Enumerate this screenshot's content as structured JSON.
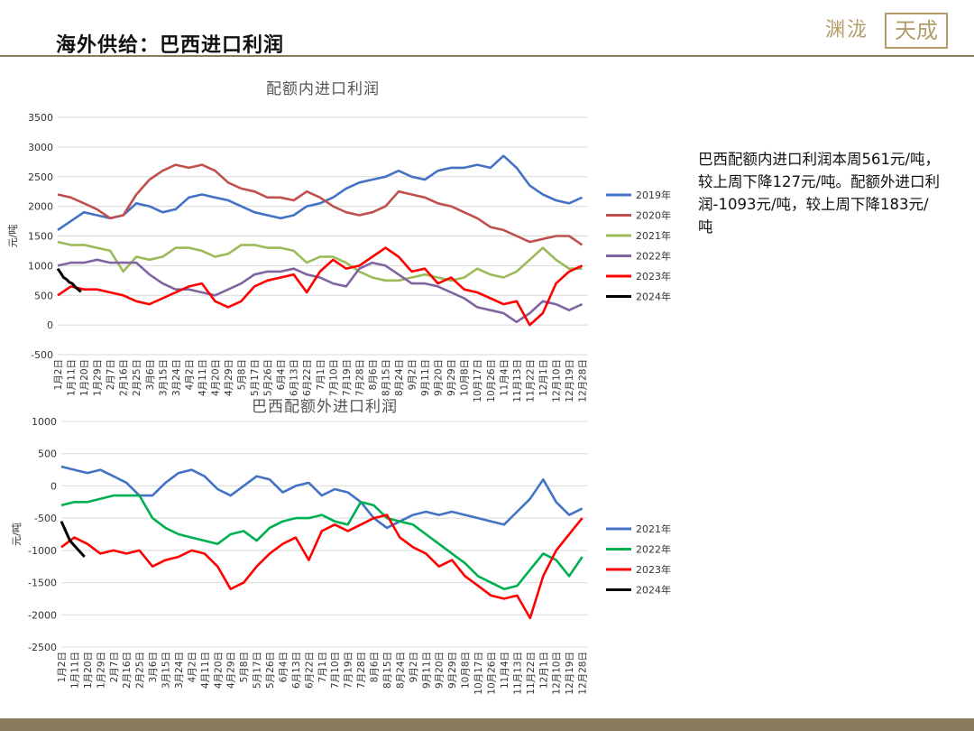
{
  "page": {
    "title": "海外供给：巴西进口利润",
    "logo_left": "渊泷",
    "logo_right": "天成"
  },
  "note": {
    "text": "巴西配额内进口利润本周561元/吨，较上周下降127元/吨。配额外进口利润-1093元/吨，较上周下降183元/吨"
  },
  "x_tick_labels": [
    "1月2日",
    "1月11日",
    "1月20日",
    "1月29日",
    "2月7日",
    "2月16日",
    "2月25日",
    "3月6日",
    "3月15日",
    "3月24日",
    "4月2日",
    "4月11日",
    "4月20日",
    "4月29日",
    "5月8日",
    "5月17日",
    "5月26日",
    "6月4日",
    "6月13日",
    "6月22日",
    "7月1日",
    "7月10日",
    "7月19日",
    "7月28日",
    "8月6日",
    "8月15日",
    "8月24日",
    "9月2日",
    "9月11日",
    "9月20日",
    "9月29日",
    "10月8日",
    "10月17日",
    "10月26日",
    "11月4日",
    "11月13日",
    "11月22日",
    "12月1日",
    "12月10日",
    "12月19日",
    "12月28日"
  ],
  "colors": {
    "2019": "#4472c4",
    "2020": "#c0504d",
    "2021": "#9bbb59",
    "2022": "#8064a2",
    "2023": "#ff0000",
    "2024": "#000000",
    "2022b": "#00b050"
  },
  "chart_data": [
    {
      "type": "line",
      "title": "配额内进口利润",
      "ylabel": "元/吨",
      "ylim": [
        -500,
        3500
      ],
      "yticks": [
        -500,
        0,
        500,
        1000,
        1500,
        2000,
        2500,
        3000,
        3500
      ],
      "x_unit": "day-of-year index (0=1月2日, 9-day tick spacing)",
      "series": [
        {
          "name": "2019年",
          "color": "#4472c4",
          "x": [
            0,
            9,
            18,
            27,
            36,
            45,
            54,
            63,
            72,
            81,
            90,
            99,
            108,
            117,
            126,
            135,
            144,
            153,
            162,
            171,
            180,
            189,
            198,
            207,
            216,
            225,
            234,
            243,
            252,
            261,
            270,
            279,
            288,
            297,
            306,
            315,
            324,
            333,
            342,
            351,
            360
          ],
          "values": [
            1600,
            1750,
            1900,
            1850,
            1800,
            1850,
            2050,
            2000,
            1900,
            1950,
            2150,
            2200,
            2150,
            2100,
            2000,
            1900,
            1850,
            1800,
            1850,
            2000,
            2050,
            2150,
            2300,
            2400,
            2450,
            2500,
            2600,
            2500,
            2450,
            2600,
            2650,
            2650,
            2700,
            2650,
            2850,
            2650,
            2350,
            2200,
            2100,
            2050,
            2150
          ]
        },
        {
          "name": "2020年",
          "color": "#c0504d",
          "x": [
            0,
            9,
            18,
            27,
            36,
            45,
            54,
            63,
            72,
            81,
            90,
            99,
            108,
            117,
            126,
            135,
            144,
            153,
            162,
            171,
            180,
            189,
            198,
            207,
            216,
            225,
            234,
            243,
            252,
            261,
            270,
            279,
            288,
            297,
            306,
            315,
            324,
            333,
            342,
            351,
            360
          ],
          "values": [
            2200,
            2150,
            2050,
            1950,
            1800,
            1850,
            2200,
            2450,
            2600,
            2700,
            2650,
            2700,
            2600,
            2400,
            2300,
            2250,
            2150,
            2150,
            2100,
            2250,
            2150,
            2000,
            1900,
            1850,
            1900,
            2000,
            2250,
            2200,
            2150,
            2050,
            2000,
            1900,
            1800,
            1650,
            1600,
            1500,
            1400,
            1450,
            1500,
            1500,
            1350
          ]
        },
        {
          "name": "2021年",
          "color": "#9bbb59",
          "x": [
            0,
            9,
            18,
            27,
            36,
            45,
            54,
            63,
            72,
            81,
            90,
            99,
            108,
            117,
            126,
            135,
            144,
            153,
            162,
            171,
            180,
            189,
            198,
            207,
            216,
            225,
            234,
            243,
            252,
            261,
            270,
            279,
            288,
            297,
            306,
            315,
            324,
            333,
            342,
            351,
            360
          ],
          "values": [
            1400,
            1350,
            1350,
            1300,
            1250,
            900,
            1150,
            1100,
            1150,
            1300,
            1300,
            1250,
            1150,
            1200,
            1350,
            1350,
            1300,
            1300,
            1250,
            1050,
            1150,
            1150,
            1050,
            900,
            800,
            750,
            750,
            800,
            850,
            800,
            750,
            800,
            950,
            850,
            800,
            900,
            1100,
            1300,
            1100,
            950,
            950
          ]
        },
        {
          "name": "2022年",
          "color": "#8064a2",
          "x": [
            0,
            9,
            18,
            27,
            36,
            45,
            54,
            63,
            72,
            81,
            90,
            99,
            108,
            117,
            126,
            135,
            144,
            153,
            162,
            171,
            180,
            189,
            198,
            207,
            216,
            225,
            234,
            243,
            252,
            261,
            270,
            279,
            288,
            297,
            306,
            315,
            324,
            333,
            342,
            351,
            360
          ],
          "values": [
            1000,
            1050,
            1050,
            1100,
            1050,
            1050,
            1050,
            850,
            700,
            600,
            600,
            550,
            500,
            600,
            700,
            850,
            900,
            900,
            950,
            850,
            800,
            700,
            650,
            950,
            1050,
            1000,
            850,
            700,
            700,
            650,
            550,
            450,
            300,
            250,
            200,
            50,
            200,
            400,
            350,
            250,
            350
          ]
        },
        {
          "name": "2023年",
          "color": "#ff0000",
          "x": [
            0,
            9,
            18,
            27,
            36,
            45,
            54,
            63,
            72,
            81,
            90,
            99,
            108,
            117,
            126,
            135,
            144,
            153,
            162,
            171,
            180,
            189,
            198,
            207,
            216,
            225,
            234,
            243,
            252,
            261,
            270,
            279,
            288,
            297,
            306,
            315,
            324,
            333,
            342,
            351,
            360
          ],
          "values": [
            500,
            650,
            600,
            600,
            550,
            500,
            400,
            350,
            450,
            550,
            650,
            700,
            400,
            300,
            400,
            650,
            750,
            800,
            850,
            550,
            900,
            1100,
            950,
            1000,
            1150,
            1300,
            1150,
            900,
            950,
            700,
            800,
            600,
            550,
            450,
            350,
            400,
            0,
            200,
            700,
            900,
            1000
          ]
        },
        {
          "name": "2024年",
          "color": "#000000",
          "x": [
            0,
            2,
            4,
            6,
            8,
            10,
            12,
            14,
            16
          ],
          "values": [
            950,
            880,
            800,
            770,
            720,
            700,
            640,
            600,
            560
          ]
        }
      ]
    },
    {
      "type": "line",
      "title": "巴西配额外进口利润",
      "ylabel": "元/吨",
      "ylim": [
        -2500,
        1000
      ],
      "yticks": [
        -2500,
        -2000,
        -1500,
        -1000,
        -500,
        0,
        500,
        1000
      ],
      "x_unit": "day-of-year index (0=1月2日, 9-day tick spacing)",
      "series": [
        {
          "name": "2021年",
          "color": "#4472c4",
          "x": [
            0,
            9,
            18,
            27,
            36,
            45,
            54,
            63,
            72,
            81,
            90,
            99,
            108,
            117,
            126,
            135,
            144,
            153,
            162,
            171,
            180,
            189,
            198,
            207,
            216,
            225,
            234,
            243,
            252,
            261,
            270,
            279,
            288,
            297,
            306,
            315,
            324,
            333,
            342,
            351,
            360
          ],
          "values": [
            300,
            250,
            200,
            250,
            150,
            50,
            -150,
            -150,
            50,
            200,
            250,
            150,
            -50,
            -150,
            0,
            150,
            100,
            -100,
            0,
            50,
            -150,
            -50,
            -100,
            -250,
            -500,
            -650,
            -550,
            -450,
            -400,
            -450,
            -400,
            -450,
            -500,
            -550,
            -600,
            -400,
            -200,
            100,
            -250,
            -450,
            -350
          ]
        },
        {
          "name": "2022年",
          "color": "#00b050",
          "x": [
            0,
            9,
            18,
            27,
            36,
            45,
            54,
            63,
            72,
            81,
            90,
            99,
            108,
            117,
            126,
            135,
            144,
            153,
            162,
            171,
            180,
            189,
            198,
            207,
            216,
            225,
            234,
            243,
            252,
            261,
            270,
            279,
            288,
            297,
            306,
            315,
            324,
            333,
            342,
            351,
            360
          ],
          "values": [
            -300,
            -250,
            -250,
            -200,
            -150,
            -150,
            -150,
            -500,
            -650,
            -750,
            -800,
            -850,
            -900,
            -750,
            -700,
            -850,
            -650,
            -550,
            -500,
            -500,
            -450,
            -550,
            -600,
            -250,
            -300,
            -500,
            -550,
            -600,
            -750,
            -900,
            -1050,
            -1200,
            -1400,
            -1500,
            -1600,
            -1550,
            -1300,
            -1050,
            -1150,
            -1400,
            -1100
          ]
        },
        {
          "name": "2023年",
          "color": "#ff0000",
          "x": [
            0,
            9,
            18,
            27,
            36,
            45,
            54,
            63,
            72,
            81,
            90,
            99,
            108,
            117,
            126,
            135,
            144,
            153,
            162,
            171,
            180,
            189,
            198,
            207,
            216,
            225,
            234,
            243,
            252,
            261,
            270,
            279,
            288,
            297,
            306,
            315,
            324,
            333,
            342,
            351,
            360
          ],
          "values": [
            -950,
            -800,
            -900,
            -1050,
            -1000,
            -1050,
            -1000,
            -1250,
            -1150,
            -1100,
            -1000,
            -1050,
            -1250,
            -1600,
            -1500,
            -1250,
            -1050,
            -900,
            -800,
            -1150,
            -700,
            -600,
            -700,
            -600,
            -500,
            -450,
            -800,
            -950,
            -1050,
            -1250,
            -1150,
            -1400,
            -1550,
            -1700,
            -1750,
            -1700,
            -2050,
            -1400,
            -1000,
            -750,
            -500
          ]
        },
        {
          "name": "2024年",
          "color": "#000000",
          "x": [
            0,
            2,
            4,
            6,
            8,
            10,
            12,
            14,
            16
          ],
          "values": [
            -550,
            -650,
            -750,
            -850,
            -900,
            -950,
            -1000,
            -1050,
            -1100
          ]
        }
      ]
    }
  ]
}
